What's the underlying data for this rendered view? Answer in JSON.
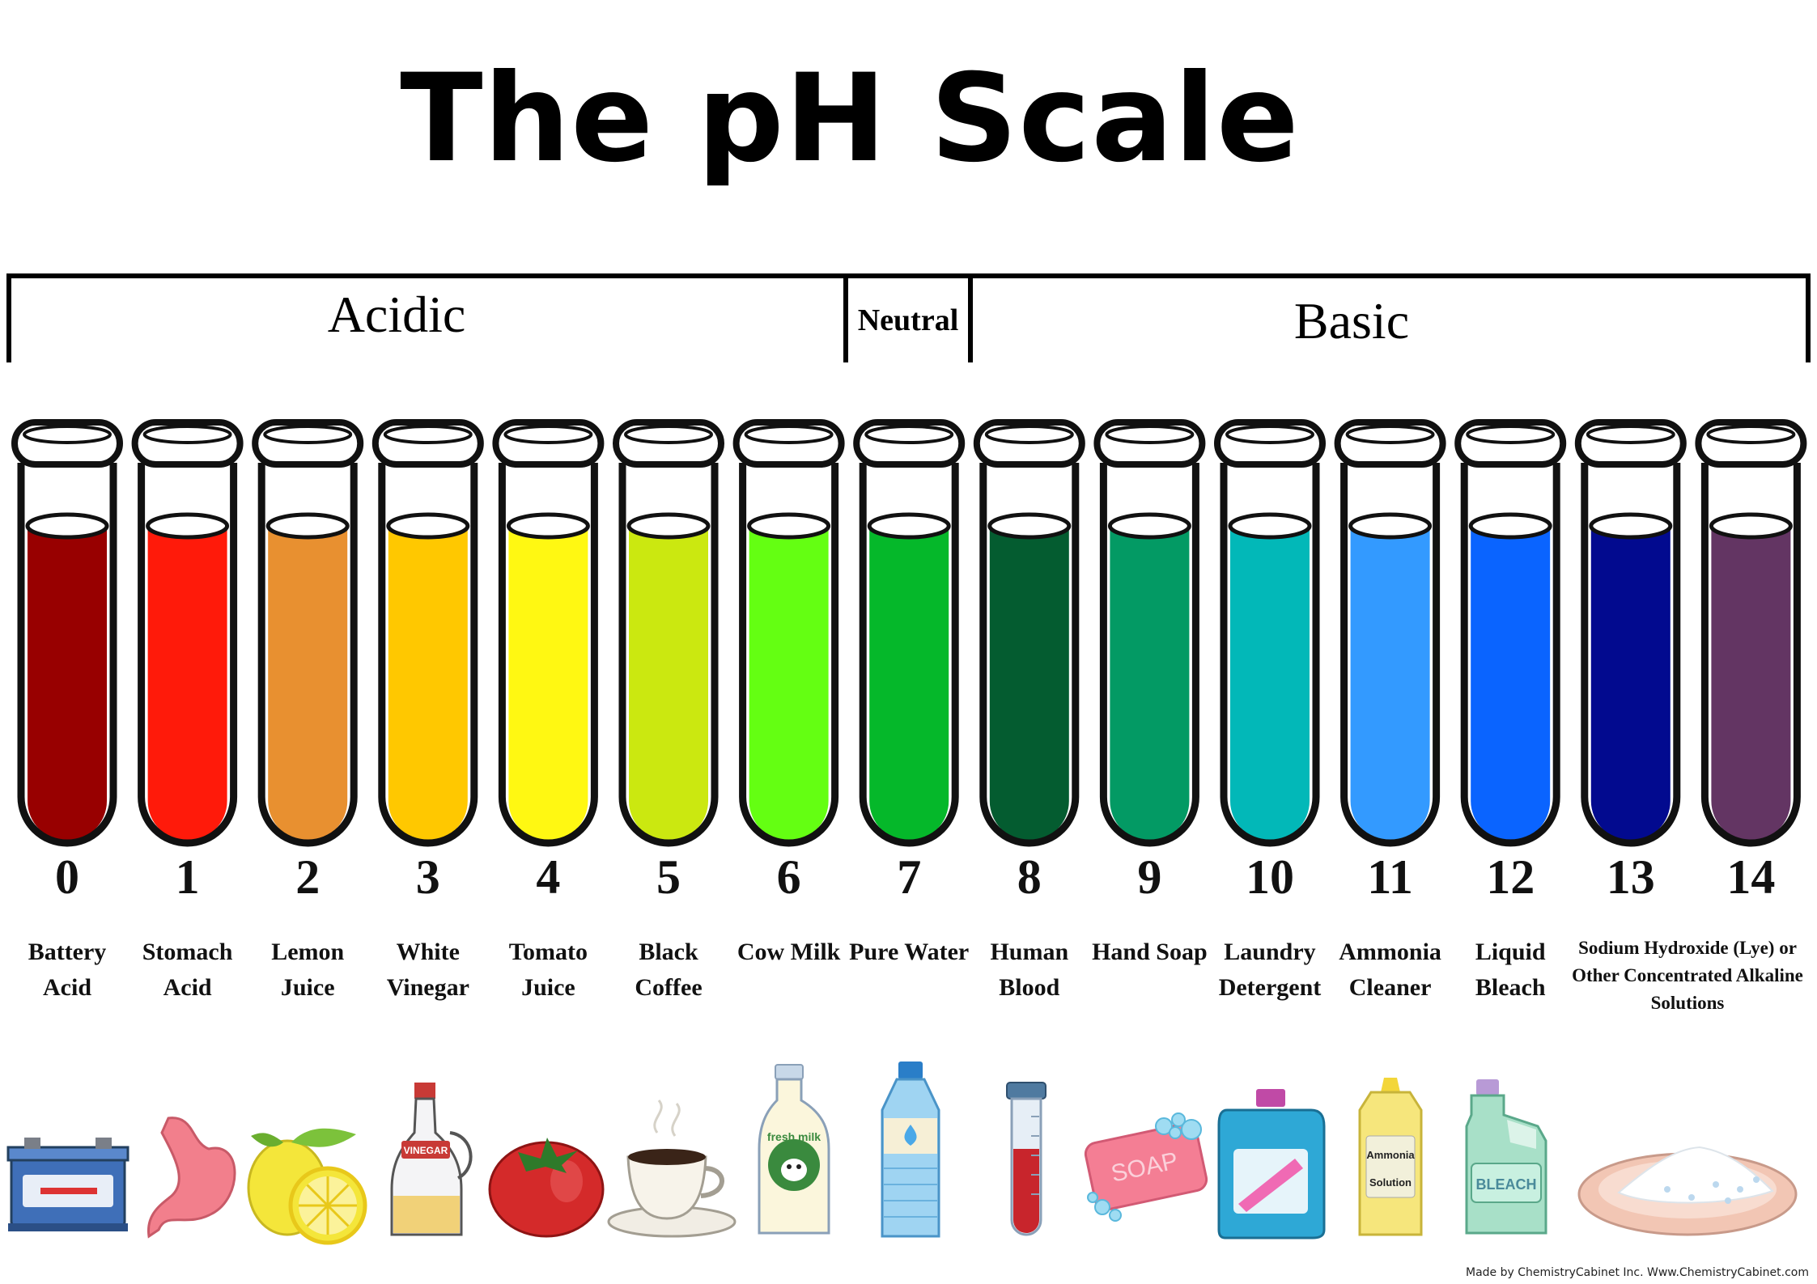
{
  "title": "The pH Scale",
  "groups": {
    "acidic": "Acidic",
    "neutral": "Neutral",
    "basic": "Basic"
  },
  "levels": [
    {
      "ph": "0",
      "label": "Battery Acid",
      "color": "#980000",
      "icon": "battery-icon"
    },
    {
      "ph": "1",
      "label": "Stomach Acid",
      "color": "#ff1a0a",
      "icon": "stomach-icon"
    },
    {
      "ph": "2",
      "label": "Lemon Juice",
      "color": "#e89030",
      "icon": "lemon-icon"
    },
    {
      "ph": "3",
      "label": "White Vinegar",
      "color": "#ffc800",
      "icon": "vinegar-bottle-icon",
      "icon_text": "VINEGAR"
    },
    {
      "ph": "4",
      "label": "Tomato Juice",
      "color": "#fff812",
      "icon": "tomato-icon"
    },
    {
      "ph": "5",
      "label": "Black Coffee",
      "color": "#cbe810",
      "icon": "coffee-cup-icon"
    },
    {
      "ph": "6",
      "label": "Cow Milk",
      "color": "#64ff12",
      "icon": "milk-bottle-icon",
      "icon_text": "fresh milk"
    },
    {
      "ph": "7",
      "label": "Pure Water",
      "color": "#05b82a",
      "icon": "water-bottle-icon"
    },
    {
      "ph": "8",
      "label": "Human Blood",
      "color": "#045c30",
      "icon": "blood-vial-icon"
    },
    {
      "ph": "9",
      "label": "Hand Soap",
      "color": "#039a64",
      "icon": "soap-icon",
      "icon_text": "SOAP"
    },
    {
      "ph": "10",
      "label": "Laundry Detergent",
      "color": "#02b8b8",
      "icon": "detergent-bottle-icon"
    },
    {
      "ph": "11",
      "label": "Ammonia Cleaner",
      "color": "#339aff",
      "icon": "ammonia-bottle-icon",
      "icon_text": "Ammonia Solution"
    },
    {
      "ph": "12",
      "label": "Liquid Bleach",
      "color": "#0a64ff",
      "icon": "bleach-jug-icon",
      "icon_text": "BLEACH"
    },
    {
      "ph": "13",
      "label": "Sodium Hydroxide (Lye) or Other Concentrated Alkaline Solutions",
      "color": "#020a8f",
      "icon": "lye-dish-icon"
    },
    {
      "ph": "14",
      "label": "",
      "color": "#633563",
      "icon": ""
    }
  ],
  "credit": "Made by ChemistryCabinet Inc. Www.ChemistryCabinet.com"
}
